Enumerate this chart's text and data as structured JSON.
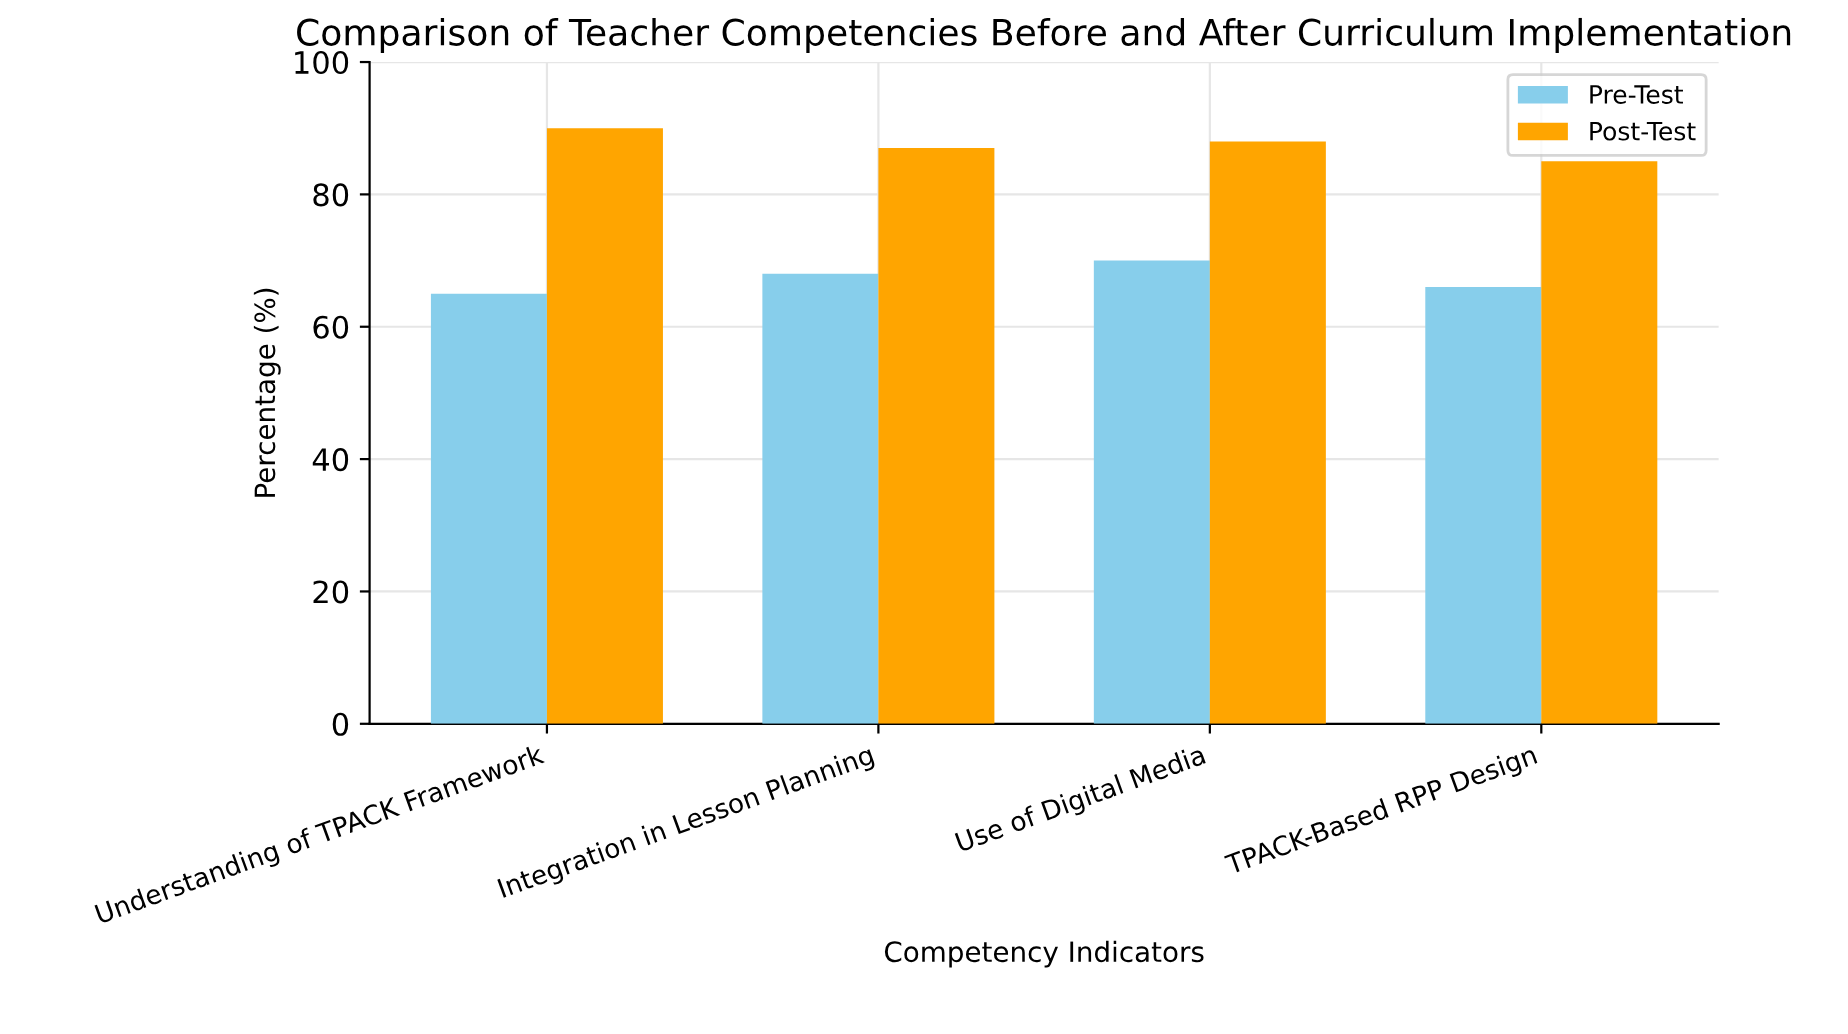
{
  "chart_data": {
    "type": "bar",
    "title": "Comparison of Teacher Competencies Before and After Curriculum Implementation",
    "xlabel": "Competency Indicators",
    "ylabel": "Percentage (%)",
    "categories": [
      "Understanding of TPACK Framework",
      "Integration in Lesson Planning",
      "Use of Digital Media",
      "TPACK-Based RPP Design"
    ],
    "series": [
      {
        "name": "Pre-Test",
        "color": "#87ceeb",
        "values": [
          65,
          68,
          70,
          66
        ]
      },
      {
        "name": "Post-Test",
        "color": "#ffa500",
        "values": [
          90,
          87,
          88,
          85
        ]
      }
    ],
    "ylim": [
      0,
      100
    ],
    "yticks": [
      0,
      20,
      40,
      60,
      80,
      100
    ],
    "grid": true,
    "legend": "top right"
  }
}
